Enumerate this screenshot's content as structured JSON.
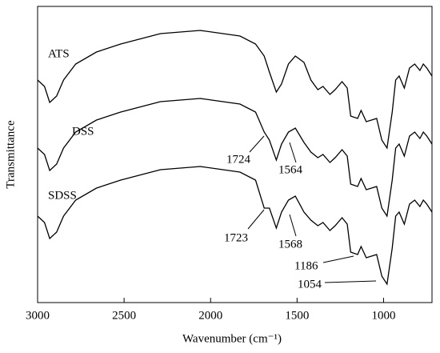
{
  "chart_data": {
    "type": "line",
    "x_label": "Wavenumber (cm⁻¹)",
    "y_label": "Transmittance",
    "x": [
      3000,
      2960,
      2930,
      2890,
      2850,
      2780,
      2660,
      2520,
      2290,
      2060,
      1830,
      1740,
      1690,
      1660,
      1620,
      1590,
      1550,
      1510,
      1460,
      1420,
      1380,
      1350,
      1310,
      1280,
      1240,
      1210,
      1190,
      1150,
      1130,
      1100,
      1070,
      1040,
      1010,
      980,
      950,
      930,
      910,
      880,
      850,
      820,
      790,
      770,
      750,
      720
    ],
    "series": [
      {
        "name": "ATS",
        "color": "#000000",
        "values": [
          278,
          270,
          250,
          258,
          278,
          298,
          313,
          323,
          336,
          340,
          333,
          323,
          308,
          288,
          263,
          273,
          298,
          308,
          300,
          278,
          266,
          270,
          260,
          266,
          276,
          268,
          233,
          230,
          240,
          226,
          228,
          230,
          203,
          193,
          238,
          278,
          283,
          268,
          293,
          298,
          290,
          298,
          293,
          283
        ]
      },
      {
        "name": "DSS",
        "color": "#000000",
        "values": [
          193,
          185,
          165,
          173,
          193,
          213,
          228,
          238,
          251,
          255,
          248,
          238,
          213,
          203,
          178,
          198,
          213,
          218,
          200,
          188,
          181,
          185,
          175,
          181,
          191,
          183,
          148,
          145,
          155,
          141,
          143,
          145,
          118,
          108,
          153,
          193,
          198,
          183,
          208,
          213,
          205,
          213,
          208,
          198
        ]
      },
      {
        "name": "SDSS",
        "color": "#000000",
        "values": [
          108,
          100,
          80,
          88,
          108,
          128,
          143,
          153,
          166,
          170,
          163,
          153,
          118,
          118,
          93,
          113,
          128,
          133,
          113,
          103,
          96,
          100,
          90,
          96,
          106,
          98,
          63,
          60,
          70,
          56,
          58,
          60,
          33,
          23,
          68,
          108,
          113,
          98,
          123,
          128,
          120,
          128,
          123,
          113
        ]
      }
    ],
    "annotations": [
      "1724",
      "1564",
      "1723",
      "1568",
      "1186",
      "1054"
    ],
    "xlim": [
      3000,
      720
    ],
    "ylim": [
      0,
      370
    ],
    "xticks": [
      3000,
      2500,
      2000,
      1500,
      1000
    ]
  }
}
